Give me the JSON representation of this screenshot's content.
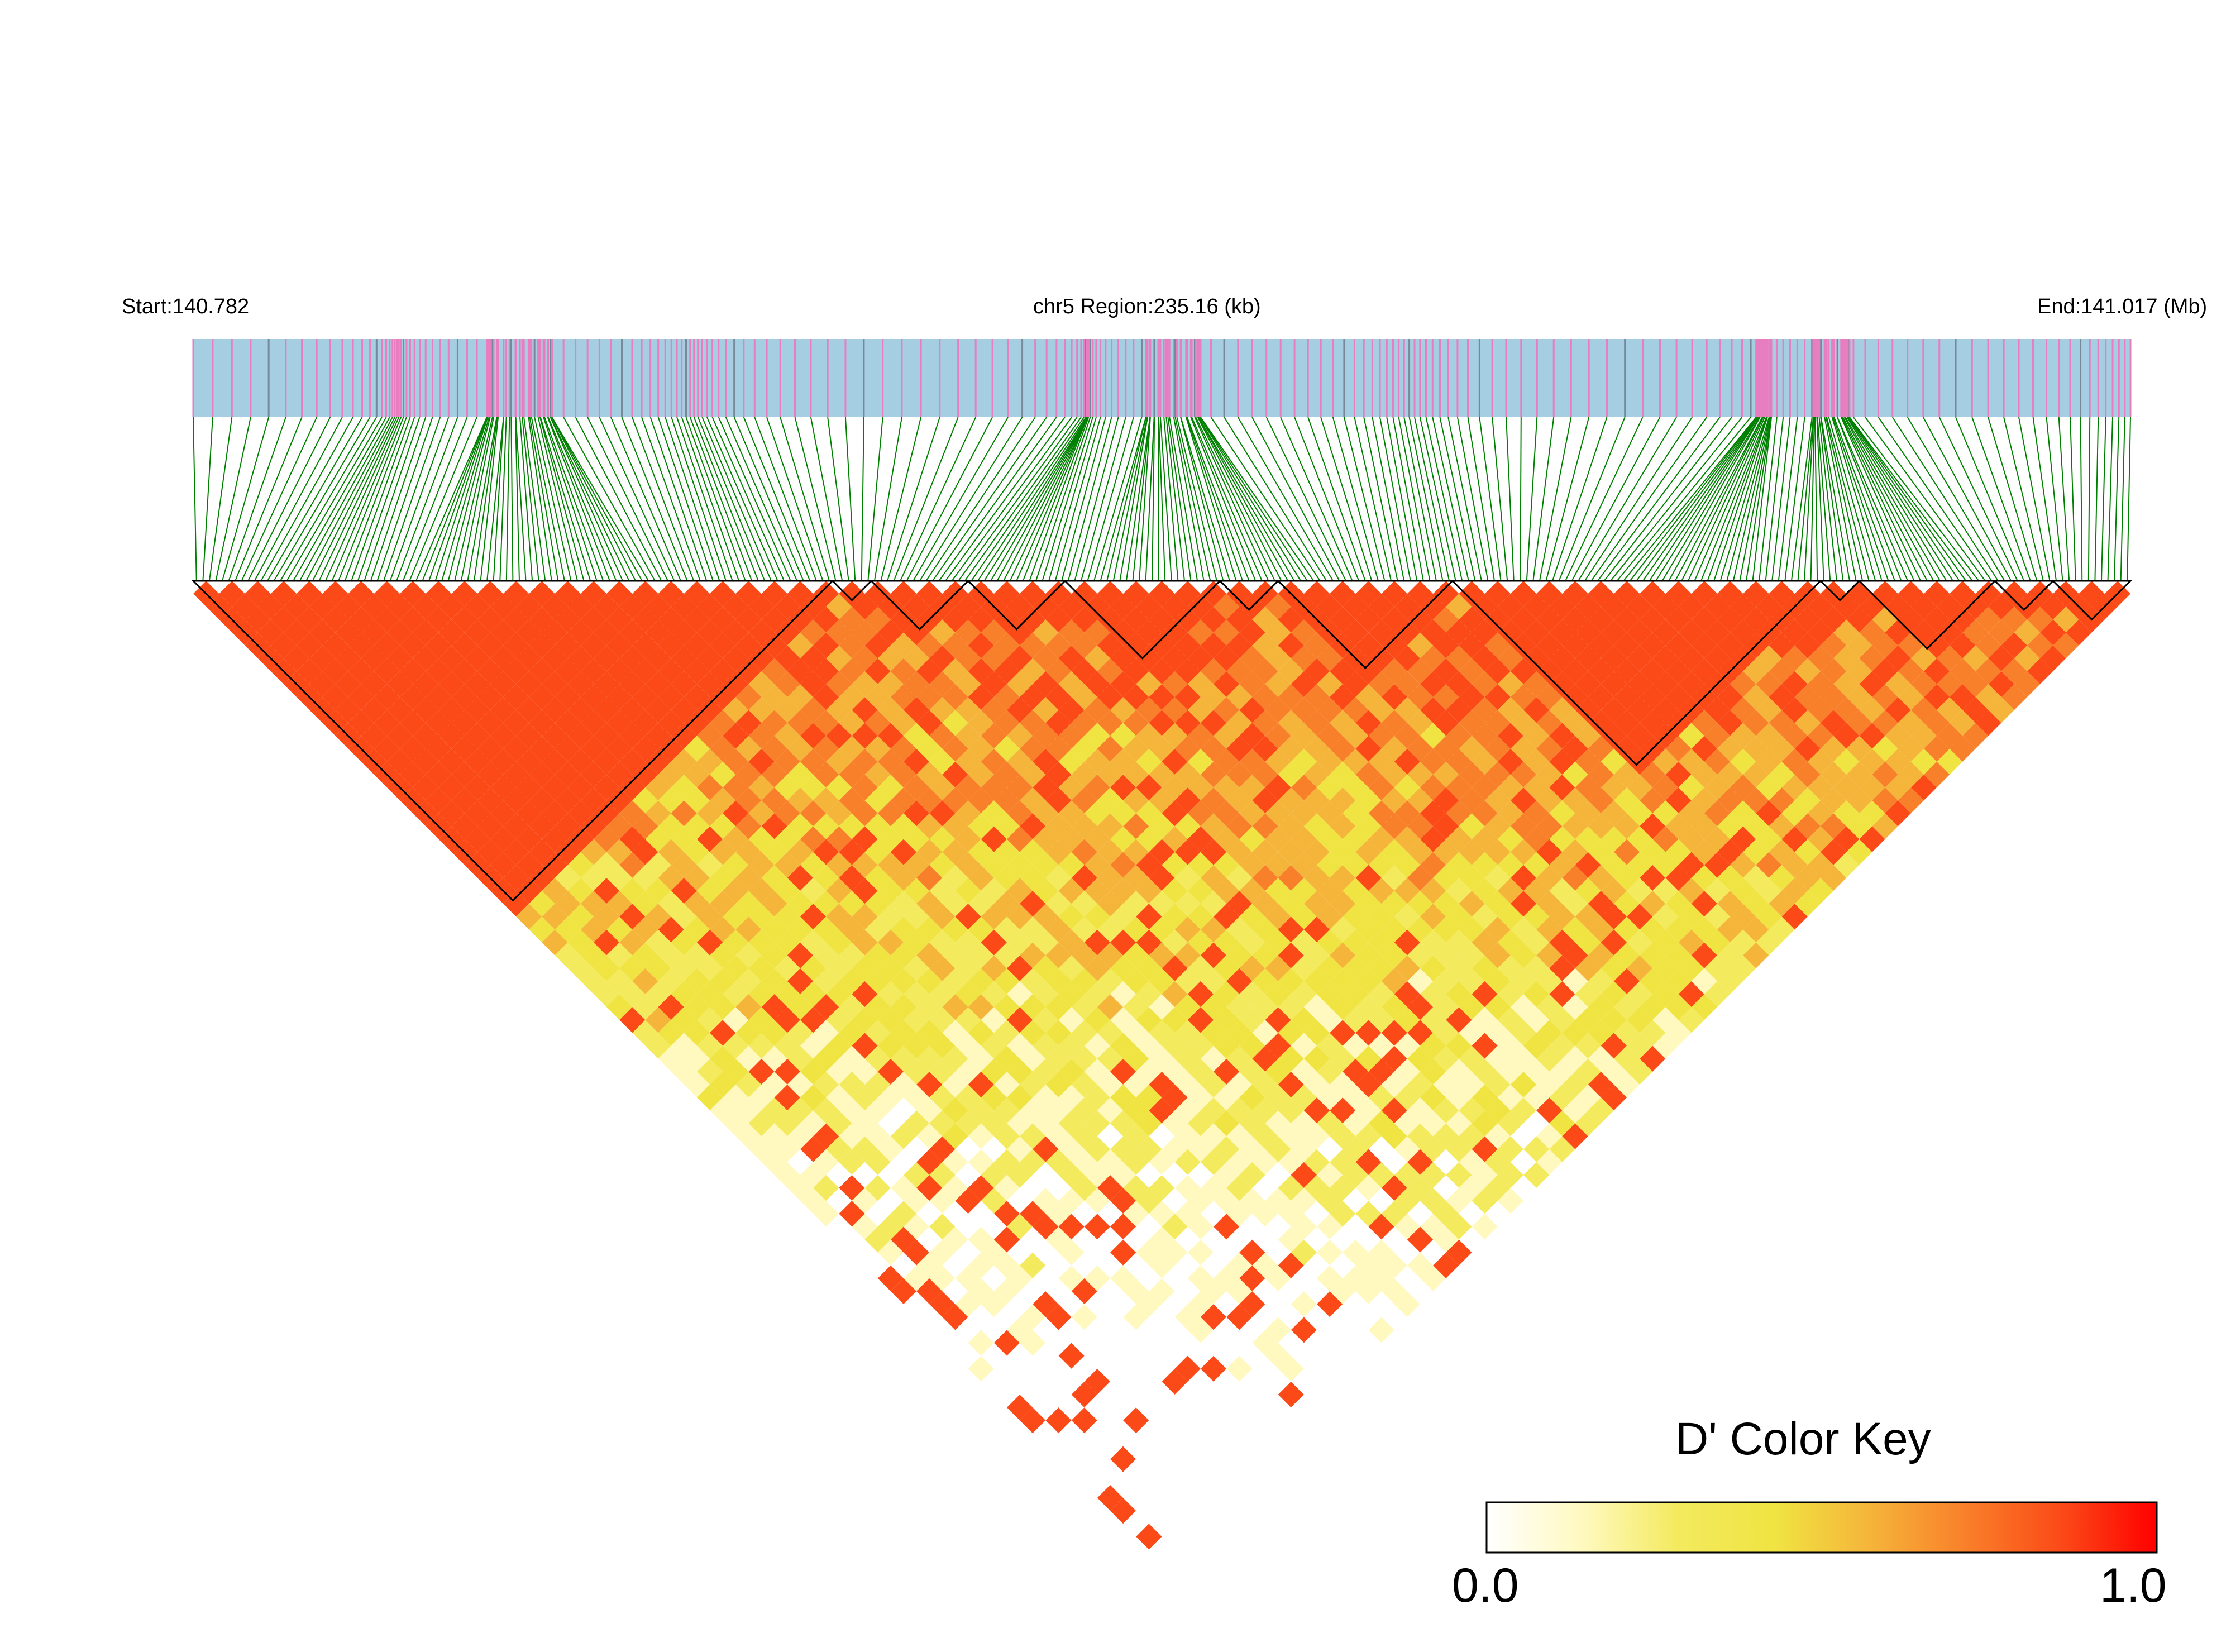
{
  "header": {
    "start_label": "Start:140.782",
    "region_label": "chr5 Region:235.16 (kb)",
    "end_label": "End:141.017 (Mb)"
  },
  "colors": {
    "ld_high": "#ff0000",
    "ld_mid": "#f0e442",
    "ld_low": "#ffffff",
    "snp_track_bg": "#a6cee3",
    "snp_marker": "#e87dc0",
    "snp_marker_alt": "#778899",
    "connector_line": "#008000",
    "block_outline": "#000000"
  },
  "color_key": {
    "title": "D' Color Key",
    "min_label": "0.0",
    "max_label": "1.0",
    "stops": [
      "#ffffff",
      "#fff9c0",
      "#f3ea5e",
      "#f0e442",
      "#f5b53a",
      "#f9802a",
      "#fb4a18",
      "#ff0000"
    ]
  },
  "chart_data": {
    "type": "heatmap",
    "title": "",
    "chromosome": "chr5",
    "region_kb": 235.16,
    "start_mb": 140.782,
    "end_mb": 141.017,
    "value_name": "D'",
    "value_range": [
      0.0,
      1.0
    ],
    "snp_count_approx": 300,
    "ld_blocks_relative_span": [
      [
        0.0,
        0.33
      ],
      [
        0.33,
        0.35
      ],
      [
        0.35,
        0.4
      ],
      [
        0.4,
        0.45
      ],
      [
        0.45,
        0.53
      ],
      [
        0.53,
        0.56
      ],
      [
        0.56,
        0.65
      ],
      [
        0.65,
        0.84
      ],
      [
        0.84,
        0.86
      ],
      [
        0.86,
        0.93
      ],
      [
        0.93,
        0.96
      ],
      [
        0.96,
        1.0
      ]
    ]
  }
}
